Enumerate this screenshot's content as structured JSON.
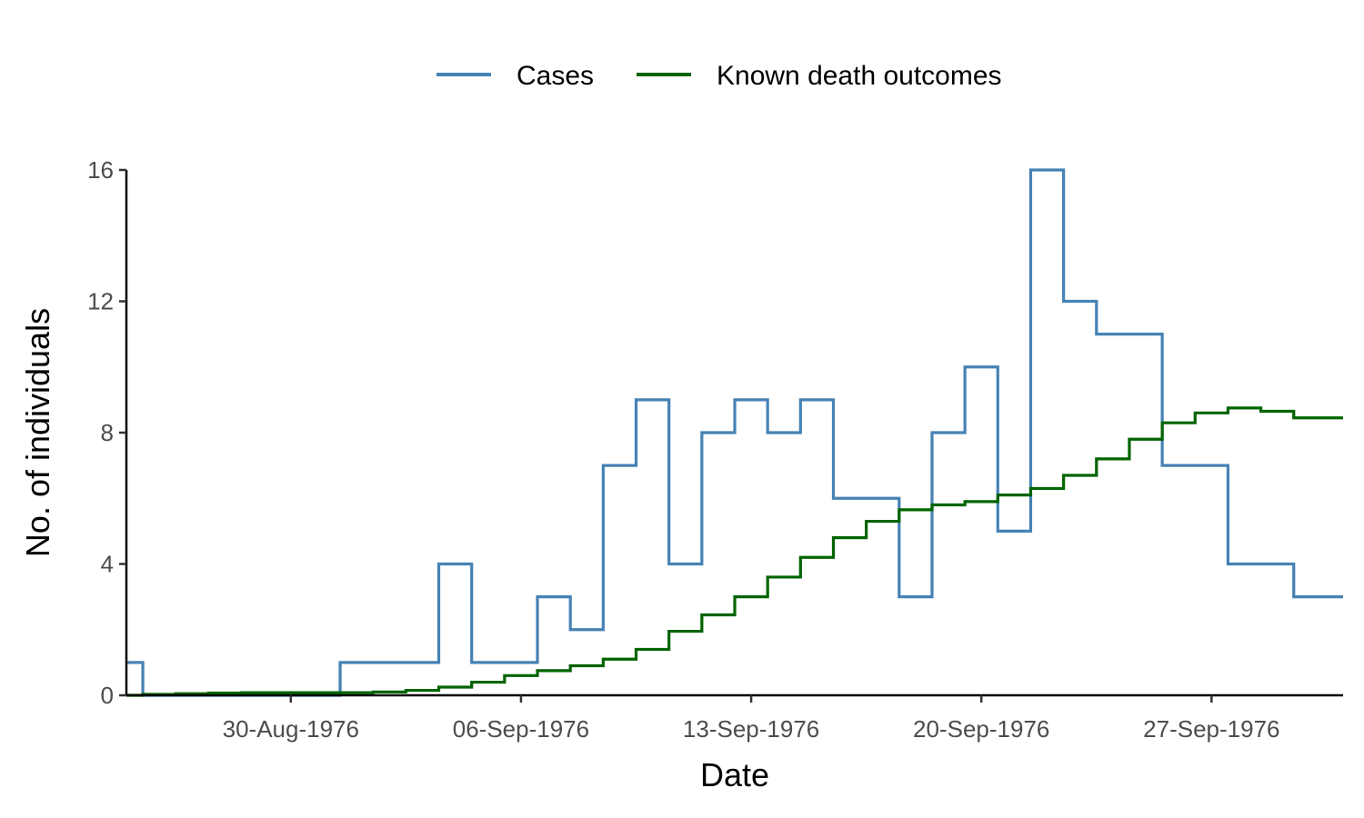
{
  "chart_data": {
    "type": "line",
    "step": true,
    "xlabel": "Date",
    "ylabel": "No. of individuals",
    "ylim": [
      0,
      16
    ],
    "yticks": [
      0,
      4,
      8,
      12,
      16
    ],
    "xlim": [
      "1976-08-25",
      "1976-10-01"
    ],
    "xticks": [
      {
        "date": "1976-08-30",
        "label": "30-Aug-1976"
      },
      {
        "date": "1976-09-06",
        "label": "06-Sep-1976"
      },
      {
        "date": "1976-09-13",
        "label": "13-Sep-1976"
      },
      {
        "date": "1976-09-20",
        "label": "20-Sep-1976"
      },
      {
        "date": "1976-09-27",
        "label": "27-Sep-1976"
      }
    ],
    "grid": false,
    "legend_position": "top",
    "series": [
      {
        "name": "Cases",
        "color": "#4682B4",
        "x": [
          "1976-08-25",
          "1976-08-26",
          "1976-08-27",
          "1976-08-28",
          "1976-08-29",
          "1976-08-30",
          "1976-08-31",
          "1976-09-01",
          "1976-09-02",
          "1976-09-03",
          "1976-09-04",
          "1976-09-05",
          "1976-09-06",
          "1976-09-07",
          "1976-09-08",
          "1976-09-09",
          "1976-09-10",
          "1976-09-11",
          "1976-09-12",
          "1976-09-13",
          "1976-09-14",
          "1976-09-15",
          "1976-09-16",
          "1976-09-17",
          "1976-09-18",
          "1976-09-19",
          "1976-09-20",
          "1976-09-21",
          "1976-09-22",
          "1976-09-23",
          "1976-09-24",
          "1976-09-25",
          "1976-09-26",
          "1976-09-27",
          "1976-09-28",
          "1976-09-29",
          "1976-09-30",
          "1976-10-01"
        ],
        "values": [
          1,
          0,
          0,
          0,
          0,
          0,
          0,
          1,
          1,
          1,
          4,
          1,
          1,
          3,
          2,
          7,
          9,
          4,
          8,
          9,
          8,
          9,
          6,
          6,
          3,
          8,
          10,
          5,
          16,
          12,
          11,
          11,
          7,
          7,
          4,
          4,
          3,
          3
        ]
      },
      {
        "name": "Known death outcomes",
        "color": "#006400",
        "x": [
          "1976-08-25",
          "1976-08-26",
          "1976-08-27",
          "1976-08-28",
          "1976-08-29",
          "1976-08-30",
          "1976-08-31",
          "1976-09-01",
          "1976-09-02",
          "1976-09-03",
          "1976-09-04",
          "1976-09-05",
          "1976-09-06",
          "1976-09-07",
          "1976-09-08",
          "1976-09-09",
          "1976-09-10",
          "1976-09-11",
          "1976-09-12",
          "1976-09-13",
          "1976-09-14",
          "1976-09-15",
          "1976-09-16",
          "1976-09-17",
          "1976-09-18",
          "1976-09-19",
          "1976-09-20",
          "1976-09-21",
          "1976-09-22",
          "1976-09-23",
          "1976-09-24",
          "1976-09-25",
          "1976-09-26",
          "1976-09-27",
          "1976-09-28",
          "1976-09-29",
          "1976-09-30",
          "1976-10-01"
        ],
        "values": [
          0.0,
          0.03,
          0.05,
          0.07,
          0.08,
          0.08,
          0.08,
          0.08,
          0.1,
          0.15,
          0.25,
          0.4,
          0.6,
          0.75,
          0.9,
          1.1,
          1.4,
          1.95,
          2.45,
          3.0,
          3.6,
          4.2,
          4.8,
          5.3,
          5.65,
          5.8,
          5.9,
          6.1,
          6.3,
          6.7,
          7.2,
          7.8,
          8.3,
          8.6,
          8.75,
          8.65,
          8.45,
          8.45
        ]
      }
    ]
  }
}
